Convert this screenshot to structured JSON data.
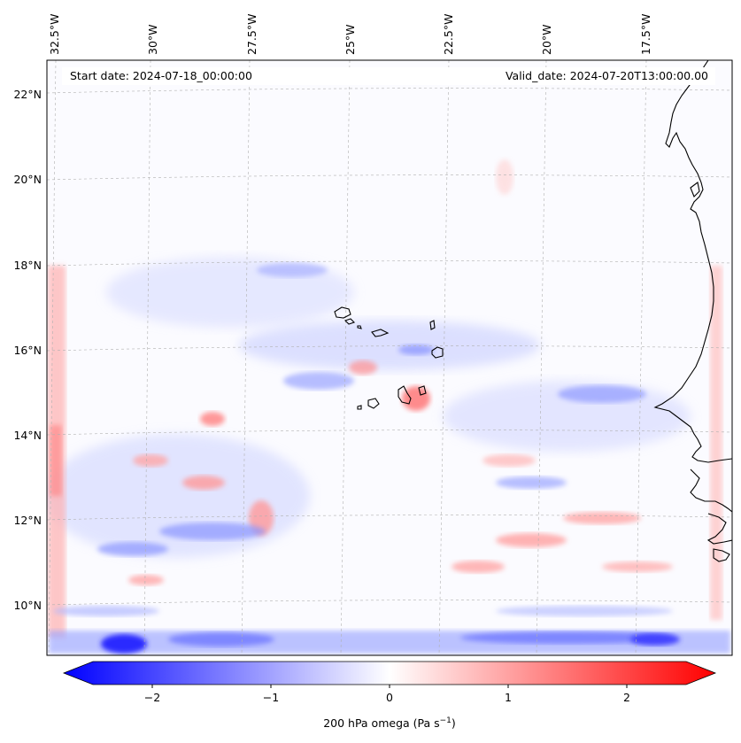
{
  "header": {
    "start_date": "Start date: 2024-07-18_00:00:00",
    "valid_date": "Valid_date: 2024-07-20T13:00:00.00"
  },
  "lon_labels": [
    "32.5°W",
    "30°W",
    "27.5°W",
    "25°W",
    "22.5°W",
    "20°W",
    "17.5°W"
  ],
  "lat_labels": [
    "22°N",
    "20°N",
    "18°N",
    "16°N",
    "14°N",
    "12°N",
    "10°N"
  ],
  "colorbar": {
    "ticks": [
      "−2",
      "−1",
      "0",
      "1",
      "2"
    ],
    "label": "200 hPa omega (Pa s",
    "label_sup": "−1",
    "label_end": ")",
    "range": [
      -2.5,
      2.5
    ],
    "colormap": "bwr"
  },
  "colors": {
    "negative": "#0000ff",
    "zero": "#ffffff",
    "positive": "#ff0000",
    "coastline": "#000000",
    "gridline": "#b0b0b0"
  }
}
